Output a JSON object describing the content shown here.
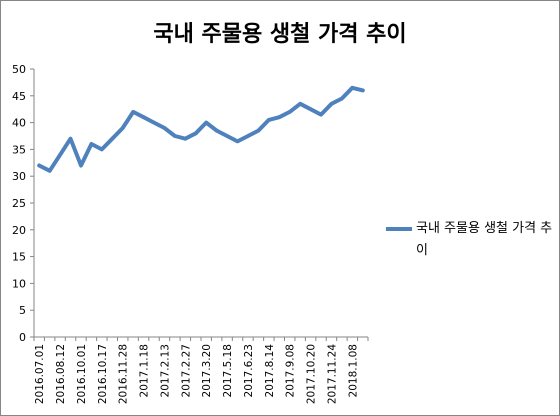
{
  "chart_data": {
    "type": "line",
    "title": "국내 주물용 생철 가격 추이",
    "xlabel": "",
    "ylabel": "",
    "ylim": [
      0,
      50
    ],
    "yticks": [
      0,
      5,
      10,
      15,
      20,
      25,
      30,
      35,
      40,
      45,
      50
    ],
    "grid": false,
    "legend_position": "right",
    "x_tick_labels": [
      "2016.07.01",
      "2016.08.12",
      "2016.10.01",
      "2016.10.17",
      "2016.11.28",
      "2017.1.18",
      "2017.2.13",
      "2017.2.27",
      "2017.3.20",
      "2017.5.18",
      "2017.6.23",
      "2017.8.14",
      "2017.9.08",
      "2017.10.20",
      "2017.11.24",
      "2018.1.08"
    ],
    "series": [
      {
        "name": "국내 주물용 생철 가격 추이",
        "color": "#4F81BD",
        "values": [
          32,
          31,
          34,
          37,
          32,
          36,
          35,
          37,
          39,
          42,
          41,
          40,
          39,
          37.5,
          37,
          38,
          40,
          38.5,
          37.5,
          36.5,
          37.5,
          38.5,
          40.5,
          41,
          42,
          43.5,
          42.5,
          41.5,
          43.5,
          44.5,
          46.5,
          46
        ]
      }
    ]
  }
}
